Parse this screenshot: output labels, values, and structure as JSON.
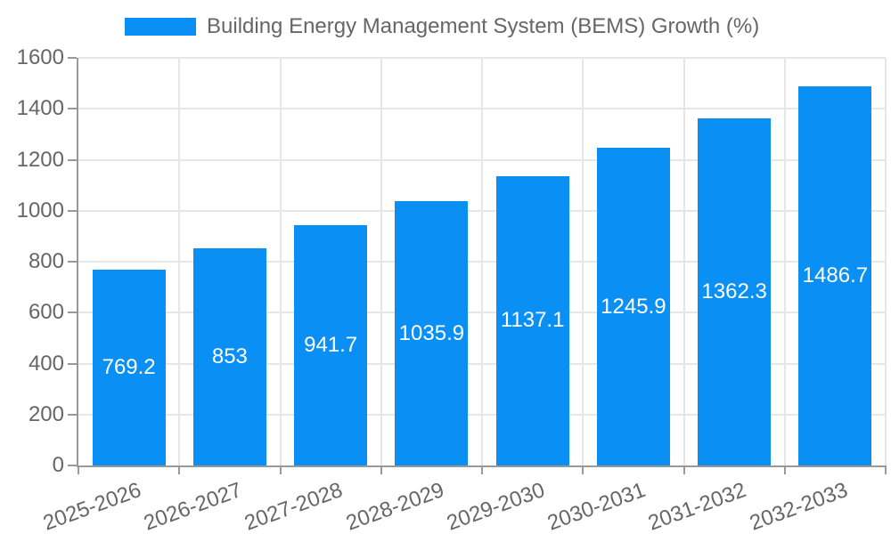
{
  "chart_data": {
    "type": "bar",
    "title": "Building Energy Management System (BEMS) Growth (%)",
    "legend_position": "top",
    "categories": [
      "2025-2026",
      "2026-2027",
      "2027-2028",
      "2028-2029",
      "2029-2030",
      "2030-2031",
      "2031-2032",
      "2032-2033"
    ],
    "series": [
      {
        "name": "Building Energy Management System (BEMS) Growth (%)",
        "values": [
          769.2,
          853,
          941.7,
          1035.9,
          1137.1,
          1245.9,
          1362.3,
          1486.7
        ]
      }
    ],
    "value_labels": [
      "769.2",
      "853",
      "941.7",
      "1035.9",
      "1137.1",
      "1245.9",
      "1362.3",
      "1486.7"
    ],
    "xlabel": "",
    "ylabel": "",
    "ylim": [
      0,
      1600
    ],
    "ytick_step": 200,
    "grid": true,
    "colors": {
      "bar": "#0a90f5",
      "value_label": "#ffffff",
      "axis_line": "#999999",
      "grid_line": "#e6e6e6",
      "text": "#666666"
    }
  }
}
